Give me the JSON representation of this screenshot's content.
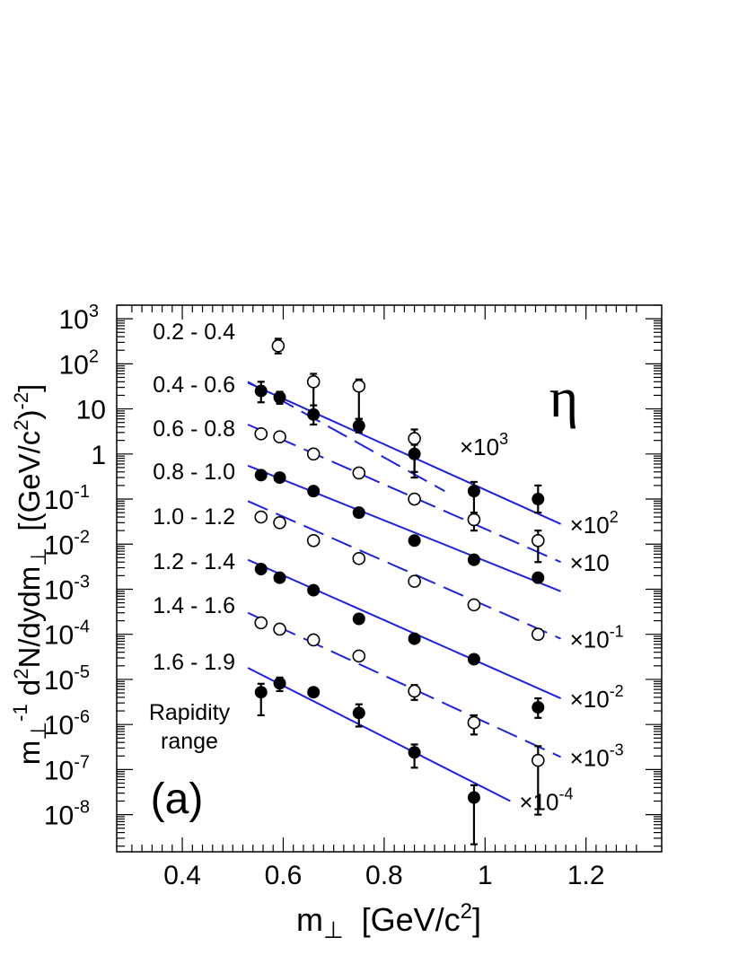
{
  "panel_label": "(a)",
  "particle_symbol": "η",
  "legend_caption": [
    "Rapidity",
    "range"
  ],
  "chart_data": {
    "type": "scatter",
    "xlabel": "m⊥  [GeV/c²]",
    "ylabel": "m⊥⁻¹ d²N/dydm⊥  [(GeV/c²)⁻²]",
    "x_scale": "linear",
    "y_scale": "log",
    "xlim": [
      0.27,
      1.35
    ],
    "ylim": [
      1.5e-09,
      2000
    ],
    "x_ticks": [
      {
        "value": 0.4,
        "label": "0.4"
      },
      {
        "value": 0.6,
        "label": "0.6"
      },
      {
        "value": 0.8,
        "label": "0.8"
      },
      {
        "value": 1.0,
        "label": "1"
      },
      {
        "value": 1.2,
        "label": "1.2"
      }
    ],
    "y_ticks": [
      {
        "exp": 3,
        "label": "10",
        "sup": "3"
      },
      {
        "exp": 2,
        "label": "10",
        "sup": "2"
      },
      {
        "exp": 1,
        "label": "10",
        "sup": ""
      },
      {
        "exp": 0,
        "label": "1",
        "sup": ""
      },
      {
        "exp": -1,
        "label": "10",
        "sup": "-1"
      },
      {
        "exp": -2,
        "label": "10",
        "sup": "-2"
      },
      {
        "exp": -3,
        "label": "10",
        "sup": "-3"
      },
      {
        "exp": -4,
        "label": "10",
        "sup": "-4"
      },
      {
        "exp": -5,
        "label": "10",
        "sup": "-5"
      },
      {
        "exp": -6,
        "label": "10",
        "sup": "-6"
      },
      {
        "exp": -7,
        "label": "10",
        "sup": "-7"
      },
      {
        "exp": -8,
        "label": "10",
        "sup": "-8"
      }
    ],
    "line_color": "#2020e0",
    "series": [
      {
        "name": "0.2 - 0.4",
        "scale": "×10",
        "scale_sup": "3",
        "marker": "open",
        "line": "dashed",
        "fit": {
          "x": [
            0.53,
            0.92
          ],
          "y": [
            40,
            0.15
          ]
        },
        "points": [
          {
            "x": 0.59,
            "y": 250,
            "lo": 170,
            "hi": 360
          },
          {
            "x": 0.66,
            "y": 40,
            "lo": 7,
            "hi": 60
          },
          {
            "x": 0.75,
            "y": 32,
            "lo": 6,
            "hi": 45
          },
          {
            "x": 0.86,
            "y": 2.2,
            "lo": 0.3,
            "hi": 3.5
          }
        ]
      },
      {
        "name": "0.4 - 0.6",
        "scale": "×10",
        "scale_sup": "2",
        "marker": "filled",
        "line": "solid",
        "fit": {
          "x": [
            0.53,
            1.15
          ],
          "y": [
            38,
            0.028
          ]
        },
        "points": [
          {
            "x": 0.556,
            "y": 25,
            "lo": 14,
            "hi": 40
          },
          {
            "x": 0.593,
            "y": 18,
            "lo": 13,
            "hi": 24
          },
          {
            "x": 0.66,
            "y": 7.5,
            "lo": 4.5,
            "hi": 12
          },
          {
            "x": 0.75,
            "y": 4.2,
            "lo": 3,
            "hi": 6
          },
          {
            "x": 0.86,
            "y": 1.0,
            "lo": 0.4,
            "hi": 1.6
          },
          {
            "x": 0.978,
            "y": 0.15,
            "lo": 0.03,
            "hi": 0.24
          },
          {
            "x": 1.105,
            "y": 0.1,
            "lo": 0.05,
            "hi": 0.2
          }
        ]
      },
      {
        "name": "0.6 - 0.8",
        "scale": "×10",
        "scale_sup": "",
        "marker": "open",
        "line": "dashed",
        "fit": {
          "x": [
            0.53,
            1.15
          ],
          "y": [
            4.5,
            0.004
          ]
        },
        "points": [
          {
            "x": 0.556,
            "y": 2.8,
            "lo": null,
            "hi": null
          },
          {
            "x": 0.593,
            "y": 2.4,
            "lo": null,
            "hi": null
          },
          {
            "x": 0.66,
            "y": 1.0,
            "lo": null,
            "hi": null
          },
          {
            "x": 0.75,
            "y": 0.38,
            "lo": null,
            "hi": null
          },
          {
            "x": 0.86,
            "y": 0.1,
            "lo": null,
            "hi": null
          },
          {
            "x": 0.978,
            "y": 0.035,
            "lo": 0.02,
            "hi": 0.05
          },
          {
            "x": 1.105,
            "y": 0.012,
            "lo": 0.004,
            "hi": 0.02
          }
        ]
      },
      {
        "name": "0.8 - 1.0",
        "scale": "",
        "scale_sup": "",
        "marker": "filled",
        "line": "solid",
        "fit": {
          "x": [
            0.53,
            1.15
          ],
          "y": [
            0.55,
            0.0009
          ]
        },
        "points": [
          {
            "x": 0.556,
            "y": 0.34,
            "lo": null,
            "hi": null
          },
          {
            "x": 0.593,
            "y": 0.3,
            "lo": null,
            "hi": null
          },
          {
            "x": 0.66,
            "y": 0.15,
            "lo": null,
            "hi": null
          },
          {
            "x": 0.75,
            "y": 0.05,
            "lo": null,
            "hi": null
          },
          {
            "x": 0.86,
            "y": 0.012,
            "lo": null,
            "hi": null
          },
          {
            "x": 0.978,
            "y": 0.0045,
            "lo": null,
            "hi": null
          },
          {
            "x": 1.105,
            "y": 0.0018,
            "lo": null,
            "hi": null
          }
        ]
      },
      {
        "name": "1.0 - 1.2",
        "scale": "×10",
        "scale_sup": "-1",
        "marker": "open",
        "line": "dashed",
        "fit": {
          "x": [
            0.53,
            1.15
          ],
          "y": [
            0.09,
            8e-05
          ]
        },
        "points": [
          {
            "x": 0.556,
            "y": 0.04,
            "lo": null,
            "hi": null
          },
          {
            "x": 0.593,
            "y": 0.03,
            "lo": null,
            "hi": null
          },
          {
            "x": 0.66,
            "y": 0.012,
            "lo": null,
            "hi": null
          },
          {
            "x": 0.75,
            "y": 0.0048,
            "lo": null,
            "hi": null
          },
          {
            "x": 0.86,
            "y": 0.0015,
            "lo": null,
            "hi": null
          },
          {
            "x": 0.978,
            "y": 0.00045,
            "lo": null,
            "hi": null
          },
          {
            "x": 1.105,
            "y": 0.0001,
            "lo": 8e-05,
            "hi": 0.00013
          }
        ]
      },
      {
        "name": "1.2 - 1.4",
        "scale": "×10",
        "scale_sup": "-2",
        "marker": "filled",
        "line": "solid",
        "fit": {
          "x": [
            0.53,
            1.15
          ],
          "y": [
            0.0045,
            3.8e-06
          ]
        },
        "points": [
          {
            "x": 0.556,
            "y": 0.0028,
            "lo": null,
            "hi": null
          },
          {
            "x": 0.593,
            "y": 0.0018,
            "lo": null,
            "hi": null
          },
          {
            "x": 0.66,
            "y": 0.00095,
            "lo": null,
            "hi": null
          },
          {
            "x": 0.75,
            "y": 0.00022,
            "lo": null,
            "hi": null
          },
          {
            "x": 0.86,
            "y": 8e-05,
            "lo": null,
            "hi": null
          },
          {
            "x": 0.978,
            "y": 2.8e-05,
            "lo": null,
            "hi": null
          },
          {
            "x": 1.105,
            "y": 2.4e-06,
            "lo": 1.4e-06,
            "hi": 3.8e-06
          }
        ]
      },
      {
        "name": "1.4 - 1.6",
        "scale": "×10",
        "scale_sup": "-3",
        "marker": "open",
        "line": "dashed",
        "fit": {
          "x": [
            0.53,
            1.15
          ],
          "y": [
            0.0003,
            1.9e-07
          ]
        },
        "points": [
          {
            "x": 0.556,
            "y": 0.00018,
            "lo": null,
            "hi": null
          },
          {
            "x": 0.593,
            "y": 0.00013,
            "lo": null,
            "hi": null
          },
          {
            "x": 0.66,
            "y": 7.5e-05,
            "lo": null,
            "hi": null
          },
          {
            "x": 0.75,
            "y": 3.3e-05,
            "lo": null,
            "hi": null
          },
          {
            "x": 0.86,
            "y": 5.5e-06,
            "lo": 3.5e-06,
            "hi": 7.5e-06
          },
          {
            "x": 0.978,
            "y": 1.1e-06,
            "lo": 6e-07,
            "hi": 1.6e-06
          },
          {
            "x": 1.105,
            "y": 1.6e-07,
            "lo": 1e-08,
            "hi": 3.3e-07
          }
        ]
      },
      {
        "name": "1.6 - 1.9",
        "scale": "×10",
        "scale_sup": "-4",
        "marker": "filled",
        "line": "solid",
        "fit": {
          "x": [
            0.53,
            1.05
          ],
          "y": [
            1.8e-05,
            2e-08
          ]
        },
        "points": [
          {
            "x": 0.556,
            "y": 5.2e-06,
            "lo": 1.6e-06,
            "hi": 8e-06
          },
          {
            "x": 0.593,
            "y": 8.2e-06,
            "lo": 5.5e-06,
            "hi": 1.1e-05
          },
          {
            "x": 0.66,
            "y": 5.2e-06,
            "lo": null,
            "hi": null
          },
          {
            "x": 0.75,
            "y": 1.8e-06,
            "lo": 9e-07,
            "hi": 2.8e-06
          },
          {
            "x": 0.86,
            "y": 2.4e-07,
            "lo": 1.1e-07,
            "hi": 3.6e-07
          },
          {
            "x": 0.978,
            "y": 2.4e-08,
            "lo": 2.2e-09,
            "hi": 4.5e-08
          }
        ]
      }
    ]
  }
}
